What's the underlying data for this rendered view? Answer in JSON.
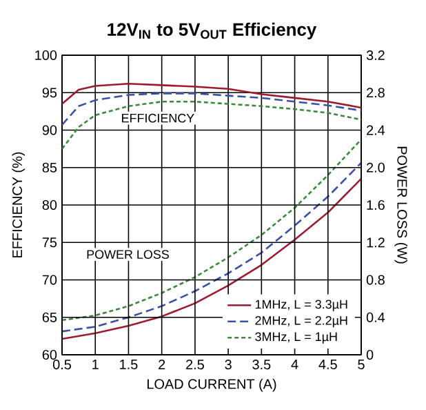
{
  "chart_data": {
    "type": "line",
    "title": "12V$_{IN}$ to 5V$_{OUT}$ Efficiency",
    "xlabel": "LOAD CURRENT (A)",
    "ylabel": "EFFICIENCY (%)",
    "y2label": "POWER LOSS (W)",
    "x": [
      0.5,
      0.75,
      1,
      1.5,
      2,
      2.5,
      3,
      3.5,
      4,
      4.5,
      5
    ],
    "series": [
      {
        "name": "1MHz, L = 3.3µH",
        "color": "#9b1b30",
        "line_style": "solid",
        "values": [
          93.5,
          95.4,
          95.9,
          96.2,
          96.0,
          95.8,
          95.5,
          94.8,
          94.3,
          93.8,
          93.0
        ]
      },
      {
        "name": "2MHz, L = 2.2µH",
        "color": "#3a4fa8",
        "line_style": "dashed",
        "values": [
          90.7,
          93.2,
          94.0,
          94.7,
          94.9,
          94.9,
          94.6,
          94.3,
          93.8,
          93.3,
          92.6
        ]
      },
      {
        "name": "3MHz, L = 1µH",
        "color": "#3a8a3a",
        "line_style": "dotted",
        "values": [
          87.5,
          90.4,
          92.0,
          93.2,
          93.8,
          93.8,
          93.5,
          93.2,
          92.8,
          92.3,
          91.4
        ]
      },
      {
        "color": "#9b1b30",
        "line_style": "solid",
        "axis": "y2",
        "x": [
          0.5,
          1,
          1.5,
          2,
          2.5,
          3,
          3.5,
          4,
          4.5,
          5
        ],
        "values": [
          0.17,
          0.23,
          0.31,
          0.41,
          0.55,
          0.74,
          0.96,
          1.23,
          1.52,
          1.88
        ]
      },
      {
        "color": "#3a4fa8",
        "line_style": "dashed",
        "axis": "y2",
        "x": [
          0.5,
          1,
          1.5,
          2,
          2.5,
          3,
          3.5,
          4,
          4.5,
          5
        ],
        "values": [
          0.25,
          0.3,
          0.4,
          0.52,
          0.68,
          0.87,
          1.09,
          1.38,
          1.69,
          2.05
        ]
      },
      {
        "color": "#3a8a3a",
        "line_style": "dotted",
        "axis": "y2",
        "x": [
          0.5,
          1,
          1.5,
          2,
          2.5,
          3,
          3.5,
          4,
          4.5,
          5
        ],
        "values": [
          0.37,
          0.42,
          0.52,
          0.66,
          0.83,
          1.04,
          1.28,
          1.57,
          1.92,
          2.3
        ]
      }
    ],
    "xlim": [
      0.5,
      5
    ],
    "xticks": [
      0.5,
      1,
      1.5,
      2,
      2.5,
      3,
      3.5,
      4,
      4.5,
      5
    ],
    "ylim": [
      60,
      100
    ],
    "yticks": [
      60,
      65,
      70,
      75,
      80,
      85,
      90,
      95,
      100
    ],
    "y2lim": [
      0,
      3.2
    ],
    "y2ticks": [
      0,
      0.4,
      0.8,
      1.2,
      1.6,
      {
        "value": 2,
        "label": "2.0"
      },
      2.4,
      2.8,
      3.2
    ],
    "annotations": [
      "EFFICIENCY",
      "POWER LOSS"
    ],
    "grid": true,
    "legend": "bottom right",
    "marker": "none"
  }
}
